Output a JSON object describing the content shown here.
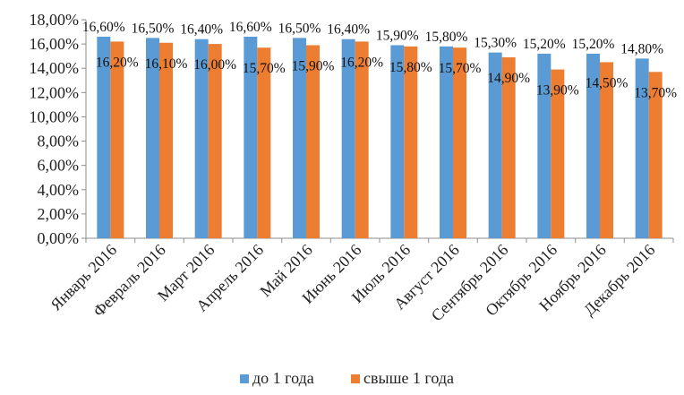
{
  "chart_data": {
    "type": "bar",
    "categories": [
      "Январь 2016",
      "Февраль 2016",
      "Март 2016",
      "Апрель 2016",
      "Май 2016",
      "Июнь 2016",
      "Июль 2016",
      "Август 2016",
      "Сентябрь 2016",
      "Октябрь 2016",
      "Ноябрь 2016",
      "Декабрь 2016"
    ],
    "series": [
      {
        "name": "до 1 года",
        "color": "#5B9BD5",
        "values": [
          16.6,
          16.5,
          16.4,
          16.6,
          16.5,
          16.4,
          15.9,
          15.8,
          15.3,
          15.2,
          15.2,
          14.8
        ],
        "labels": [
          "16,60%",
          "16,50%",
          "16,40%",
          "16,60%",
          "16,50%",
          "16,40%",
          "15,90%",
          "15,80%",
          "15,30%",
          "15,20%",
          "15,20%",
          "14,80%"
        ]
      },
      {
        "name": "свыше 1 года",
        "color": "#ED7D31",
        "values": [
          16.2,
          16.1,
          16.0,
          15.7,
          15.9,
          16.2,
          15.8,
          15.7,
          14.9,
          13.9,
          14.5,
          13.7
        ],
        "labels": [
          "16,20%",
          "16,10%",
          "16,00%",
          "15,70%",
          "15,90%",
          "16,20%",
          "15,80%",
          "15,70%",
          "14,90%",
          "13,90%",
          "14,50%",
          "13,70%"
        ]
      }
    ],
    "y_ticks": [
      "0,00%",
      "2,00%",
      "4,00%",
      "6,00%",
      "8,00%",
      "10,00%",
      "12,00%",
      "14,00%",
      "16,00%",
      "18,00%"
    ],
    "ylim": [
      0,
      18
    ],
    "grid": false,
    "legend_position": "bottom",
    "title": "",
    "xlabel": "",
    "ylabel": ""
  }
}
